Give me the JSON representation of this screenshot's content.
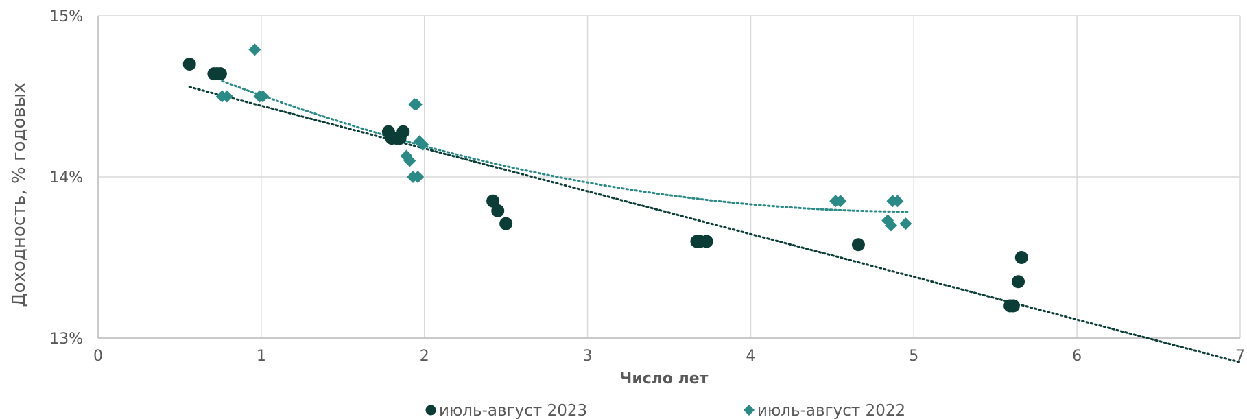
{
  "chart_data": {
    "type": "scatter",
    "xlabel": "Число лет",
    "ylabel": "Доходность, % годовых",
    "xlim": [
      0,
      7
    ],
    "ylim": [
      13,
      15
    ],
    "x_ticks": [
      "0",
      "1",
      "2",
      "3",
      "4",
      "5",
      "6",
      "7"
    ],
    "y_ticks": [
      "13%",
      "14%",
      "15%"
    ],
    "grid": true,
    "legend_position": "bottom",
    "series": [
      {
        "name": "июль-август 2023",
        "marker": "circle",
        "color": "#0b3d36",
        "trendline": "linear",
        "trendline_range": [
          0.56,
          7.0
        ],
        "points": [
          [
            0.56,
            14.7
          ],
          [
            0.71,
            14.64
          ],
          [
            0.73,
            14.64
          ],
          [
            0.75,
            14.64
          ],
          [
            1.78,
            14.28
          ],
          [
            1.8,
            14.24
          ],
          [
            1.83,
            14.24
          ],
          [
            1.85,
            14.24
          ],
          [
            1.87,
            14.28
          ],
          [
            2.42,
            13.85
          ],
          [
            2.45,
            13.79
          ],
          [
            2.5,
            13.71
          ],
          [
            3.67,
            13.6
          ],
          [
            3.69,
            13.6
          ],
          [
            3.73,
            13.6
          ],
          [
            4.66,
            13.58
          ],
          [
            5.59,
            13.2
          ],
          [
            5.61,
            13.2
          ],
          [
            5.64,
            13.35
          ],
          [
            5.66,
            13.5
          ]
        ]
      },
      {
        "name": "июль-август 2022",
        "marker": "diamond",
        "color": "#2a8a85",
        "trendline": "polynomial",
        "trendline_range": [
          0.76,
          4.96
        ],
        "points": [
          [
            0.76,
            14.5
          ],
          [
            0.79,
            14.5
          ],
          [
            0.96,
            14.79
          ],
          [
            0.99,
            14.5
          ],
          [
            1.01,
            14.5
          ],
          [
            1.89,
            14.13
          ],
          [
            1.91,
            14.1
          ],
          [
            1.93,
            14.0
          ],
          [
            1.94,
            14.45
          ],
          [
            1.95,
            14.45
          ],
          [
            1.96,
            14.0
          ],
          [
            1.97,
            14.22
          ],
          [
            1.99,
            14.2
          ],
          [
            4.52,
            13.85
          ],
          [
            4.55,
            13.85
          ],
          [
            4.84,
            13.73
          ],
          [
            4.86,
            13.7
          ],
          [
            4.87,
            13.85
          ],
          [
            4.9,
            13.85
          ],
          [
            4.95,
            13.71
          ]
        ]
      }
    ]
  }
}
